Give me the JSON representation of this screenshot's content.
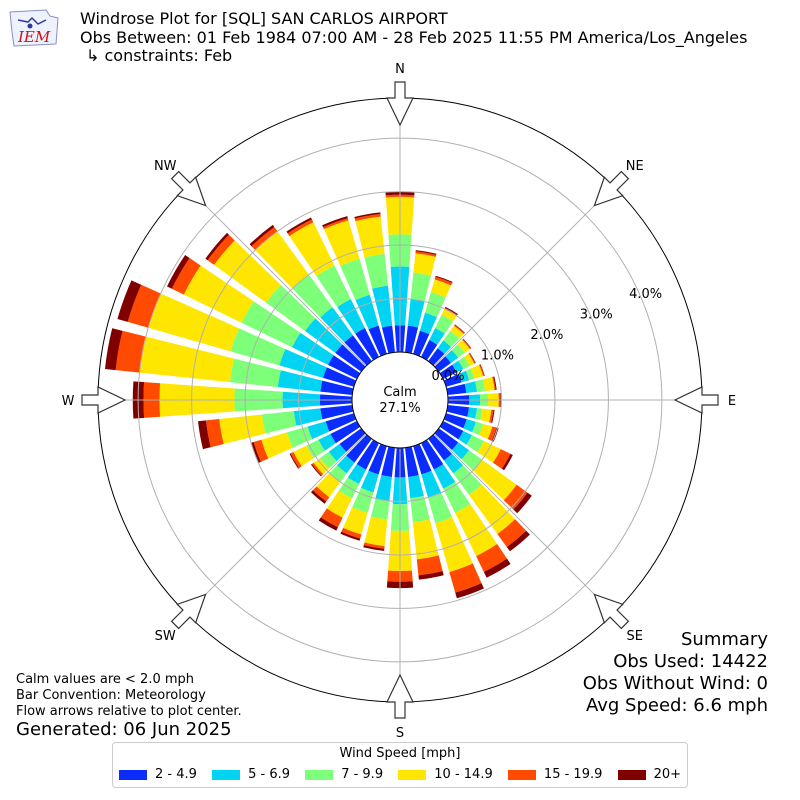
{
  "header": {
    "logo_text": "IEM",
    "title": "Windrose Plot for [SQL] SAN CARLOS AIRPORT",
    "subtitle": "Obs Between: 01 Feb 1984 07:00 AM - 28 Feb 2025 11:55 PM America/Los_Angeles",
    "constraints": "↳ constraints: Feb"
  },
  "summary": {
    "title": "Summary",
    "obs_used": "Obs Used: 14422",
    "obs_without_wind": "Obs Without Wind: 0",
    "avg_speed": "Avg Speed: 6.6 mph"
  },
  "notes": {
    "calm": "Calm values are < 2.0 mph",
    "bar_convention": "Bar Convention: Meteorology",
    "flow_arrows": "Flow arrows relative to plot center.",
    "generated": "Generated: 06 Jun 2025"
  },
  "legend": {
    "title": "Wind Speed [mph]"
  },
  "chart_data": {
    "type": "windrose",
    "calm_label": "Calm",
    "calm_percent": "27.1%",
    "radial_unit": "percent",
    "radial_ticks": [
      0,
      1,
      2,
      3,
      4
    ],
    "radial_tick_labels": [
      "0.0%",
      "1.0%",
      "2.0%",
      "3.0%",
      "4.0%"
    ],
    "rmax": 4.75,
    "compass_labels": [
      "N",
      "NE",
      "E",
      "SE",
      "S",
      "SW",
      "W",
      "NW"
    ],
    "speed_bins": [
      {
        "label": "2 - 4.9",
        "color": "#0a2cff"
      },
      {
        "label": "5 - 6.9",
        "color": "#00d4f2"
      },
      {
        "label": "7 - 9.9",
        "color": "#7dff7a"
      },
      {
        "label": "10 - 14.9",
        "color": "#ffe600"
      },
      {
        "label": "15 - 19.9",
        "color": "#ff4a00"
      },
      {
        "label": "20+",
        "color": "#800000"
      }
    ],
    "directions": [
      0,
      10,
      20,
      30,
      40,
      50,
      60,
      70,
      80,
      90,
      100,
      110,
      120,
      130,
      140,
      150,
      160,
      170,
      180,
      190,
      200,
      210,
      220,
      230,
      240,
      250,
      260,
      270,
      280,
      290,
      300,
      310,
      320,
      330,
      340,
      350
    ],
    "cumulative_percent": [
      [
        0.5,
        1.6,
        2.2,
        2.9,
        2.94,
        3.0
      ],
      [
        0.5,
        1.0,
        1.5,
        1.86,
        1.9,
        1.92
      ],
      [
        0.45,
        0.8,
        1.2,
        1.45,
        1.5,
        1.52
      ],
      [
        0.35,
        0.6,
        0.88,
        1.0,
        1.02,
        1.04
      ],
      [
        0.3,
        0.48,
        0.7,
        0.82,
        0.84,
        0.85
      ],
      [
        0.28,
        0.45,
        0.6,
        0.72,
        0.74,
        0.75
      ],
      [
        0.28,
        0.42,
        0.55,
        0.65,
        0.67,
        0.68
      ],
      [
        0.3,
        0.45,
        0.55,
        0.72,
        0.74,
        0.75
      ],
      [
        0.35,
        0.55,
        0.7,
        0.88,
        0.9,
        0.92
      ],
      [
        0.4,
        0.6,
        0.75,
        0.95,
        0.98,
        1.0
      ],
      [
        0.4,
        0.55,
        0.65,
        0.82,
        0.86,
        0.88
      ],
      [
        0.4,
        0.58,
        0.72,
        0.9,
        0.98,
        1.02
      ],
      [
        0.42,
        0.6,
        0.85,
        1.2,
        1.4,
        1.45
      ],
      [
        0.45,
        0.7,
        1.0,
        1.8,
        2.05,
        2.15
      ],
      [
        0.5,
        0.8,
        1.3,
        2.2,
        2.5,
        2.6
      ],
      [
        0.55,
        0.95,
        1.45,
        2.35,
        2.68,
        2.8
      ],
      [
        0.55,
        1.0,
        1.5,
        2.45,
        2.85,
        2.96
      ],
      [
        0.55,
        0.95,
        1.4,
        2.1,
        2.4,
        2.48
      ],
      [
        0.55,
        1.05,
        1.55,
        2.3,
        2.5,
        2.62
      ],
      [
        0.55,
        1.0,
        1.35,
        1.85,
        1.9,
        1.94
      ],
      [
        0.55,
        0.9,
        1.3,
        1.72,
        1.8,
        1.84
      ],
      [
        0.55,
        0.85,
        1.15,
        1.55,
        1.75,
        1.82
      ],
      [
        0.55,
        0.8,
        1.0,
        1.35,
        1.45,
        1.5
      ],
      [
        0.5,
        0.75,
        0.95,
        1.1,
        1.14,
        1.16
      ],
      [
        0.55,
        0.8,
        1.05,
        1.32,
        1.38,
        1.4
      ],
      [
        0.55,
        0.9,
        1.3,
        1.8,
        1.95,
        2.0
      ],
      [
        0.6,
        1.1,
        1.7,
        2.5,
        2.75,
        2.9
      ],
      [
        0.6,
        1.3,
        2.2,
        3.6,
        3.9,
        4.1
      ],
      [
        0.6,
        1.4,
        2.3,
        4.0,
        4.45,
        4.65
      ],
      [
        0.6,
        1.45,
        2.4,
        4.0,
        4.4,
        4.6
      ],
      [
        0.6,
        1.35,
        2.4,
        3.6,
        3.85,
        3.95
      ],
      [
        0.6,
        1.3,
        2.2,
        3.4,
        3.55,
        3.6
      ],
      [
        0.6,
        1.25,
        2.0,
        3.0,
        3.1,
        3.15
      ],
      [
        0.6,
        1.2,
        1.9,
        2.8,
        2.86,
        2.9
      ],
      [
        0.55,
        1.15,
        1.85,
        2.6,
        2.64,
        2.68
      ],
      [
        0.5,
        1.25,
        1.85,
        2.55,
        2.6,
        2.63
      ]
    ]
  }
}
